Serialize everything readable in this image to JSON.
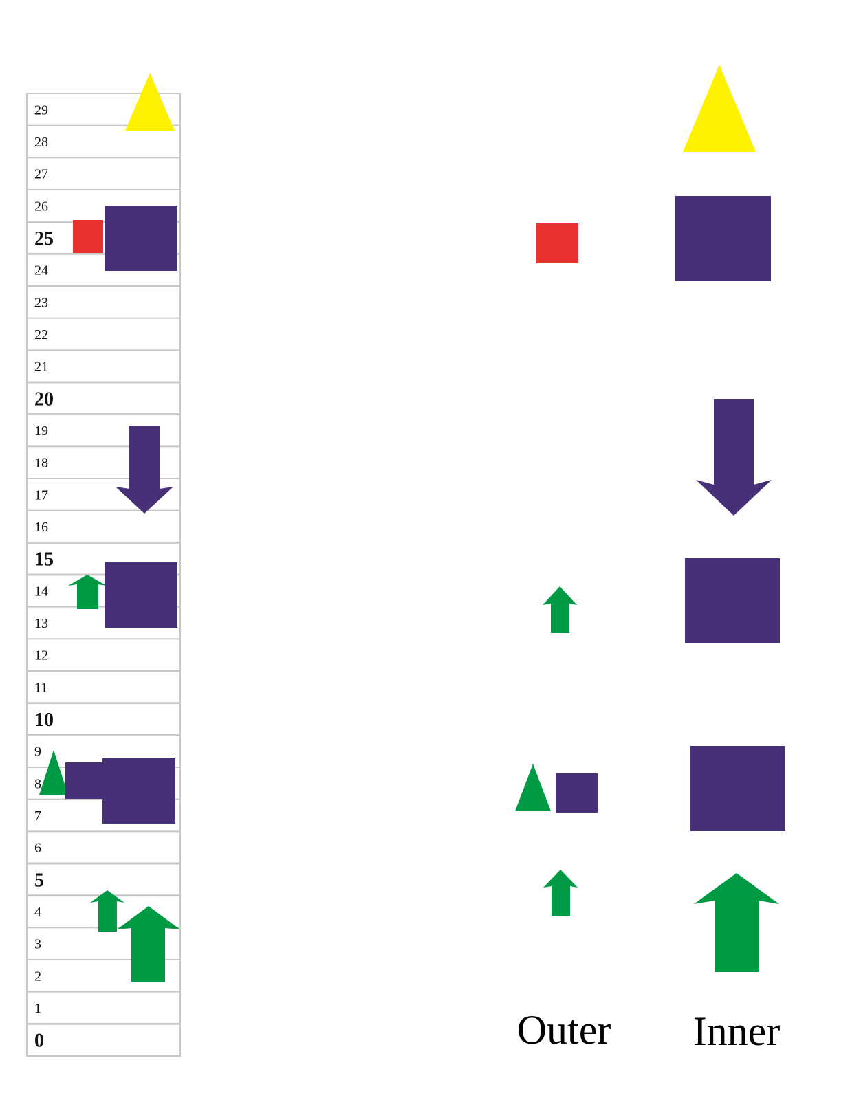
{
  "scale": {
    "rows": [
      {
        "label": "29",
        "major": false
      },
      {
        "label": "28",
        "major": false
      },
      {
        "label": "27",
        "major": false
      },
      {
        "label": "26",
        "major": false
      },
      {
        "label": "25",
        "major": true
      },
      {
        "label": "24",
        "major": false
      },
      {
        "label": "23",
        "major": false
      },
      {
        "label": "22",
        "major": false
      },
      {
        "label": "21",
        "major": false
      },
      {
        "label": "20",
        "major": true
      },
      {
        "label": "19",
        "major": false
      },
      {
        "label": "18",
        "major": false
      },
      {
        "label": "17",
        "major": false
      },
      {
        "label": "16",
        "major": false
      },
      {
        "label": "15",
        "major": true
      },
      {
        "label": "14",
        "major": false
      },
      {
        "label": "13",
        "major": false
      },
      {
        "label": "12",
        "major": false
      },
      {
        "label": "11",
        "major": false
      },
      {
        "label": "10",
        "major": true
      },
      {
        "label": "9",
        "major": false
      },
      {
        "label": "8",
        "major": false
      },
      {
        "label": "7",
        "major": false
      },
      {
        "label": "6",
        "major": false
      },
      {
        "label": "5",
        "major": true
      },
      {
        "label": "4",
        "major": false
      },
      {
        "label": "3",
        "major": false
      },
      {
        "label": "2",
        "major": false
      },
      {
        "label": "1",
        "major": false
      },
      {
        "label": "0",
        "major": true
      }
    ]
  },
  "columns": {
    "outer_label": "Outer",
    "inner_label": "Inner"
  },
  "colors": {
    "yellow": "#FFF200",
    "purple": "#483078",
    "red": "#E8312F",
    "green": "#009A44",
    "grid": "#c8c8c8"
  },
  "shapes": [
    {
      "name": "yellow-triangle",
      "kind": "triangle",
      "color": "yellow"
    },
    {
      "name": "red-square",
      "kind": "square",
      "color": "red"
    },
    {
      "name": "purple-square-large",
      "kind": "square",
      "color": "purple"
    },
    {
      "name": "purple-down-arrow",
      "kind": "arrow-down",
      "color": "purple"
    },
    {
      "name": "green-up-arrow-small",
      "kind": "arrow-up",
      "color": "green"
    },
    {
      "name": "green-triangle",
      "kind": "triangle",
      "color": "green"
    },
    {
      "name": "green-up-arrow-large",
      "kind": "arrow-up",
      "color": "green"
    }
  ]
}
